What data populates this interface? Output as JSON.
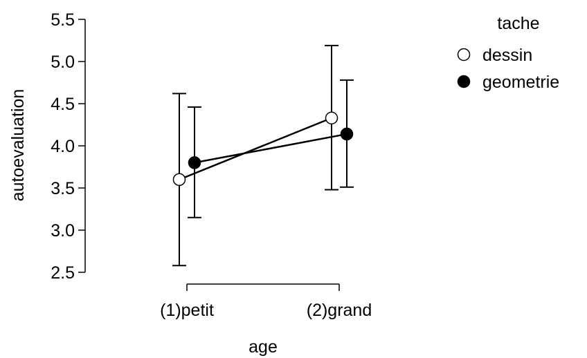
{
  "chart_data": {
    "type": "line",
    "xlabel": "age",
    "ylabel": "autoevaluation",
    "categories": [
      "(1)petit",
      "(2)grand"
    ],
    "ylim": [
      2.5,
      5.5
    ],
    "yticks": [
      "2.5",
      "3.0",
      "3.5",
      "4.0",
      "4.5",
      "5.0",
      "5.5"
    ],
    "grid": false,
    "error_bars": true,
    "legend": {
      "title": "tache",
      "placement": "top-right"
    },
    "series": [
      {
        "name": "dessin",
        "marker": "open-circle",
        "values": [
          3.6,
          4.33
        ],
        "lower": [
          2.58,
          3.48
        ],
        "upper": [
          4.62,
          5.19
        ]
      },
      {
        "name": "geometrie",
        "marker": "filled-circle",
        "values": [
          3.8,
          4.14
        ],
        "lower": [
          3.15,
          3.51
        ],
        "upper": [
          4.46,
          4.78
        ]
      }
    ]
  }
}
